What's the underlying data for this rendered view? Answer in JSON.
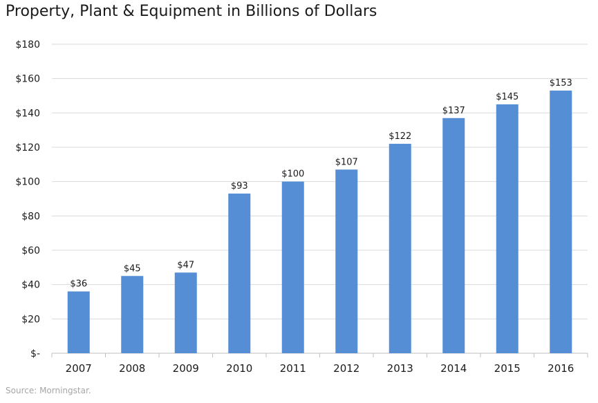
{
  "chart_data": {
    "type": "bar",
    "title": "Property, Plant & Equipment in Billions of Dollars",
    "xlabel": "",
    "ylabel": "",
    "categories": [
      "2007",
      "2008",
      "2009",
      "2010",
      "2011",
      "2012",
      "2013",
      "2014",
      "2015",
      "2016"
    ],
    "values": [
      36,
      45,
      47,
      93,
      100,
      107,
      122,
      137,
      145,
      153
    ],
    "data_labels": [
      "$36",
      "$45",
      "$47",
      "$93",
      "$100",
      "$107",
      "$122",
      "$137",
      "$145",
      "$153"
    ],
    "ylim": [
      0,
      180
    ],
    "yticks": [
      0,
      20,
      40,
      60,
      80,
      100,
      120,
      140,
      160,
      180
    ],
    "ytick_labels": [
      "$-",
      "$20",
      "$40",
      "$60",
      "$80",
      "$100",
      "$120",
      "$140",
      "$160",
      "$180"
    ],
    "grid": true,
    "legend": "none",
    "colors": {
      "bar": "#558ed5",
      "grid": "#d9d9d9",
      "axis": "#bfbfbf",
      "text": "#1a1a1a"
    }
  },
  "source": "Source: Morningstar."
}
